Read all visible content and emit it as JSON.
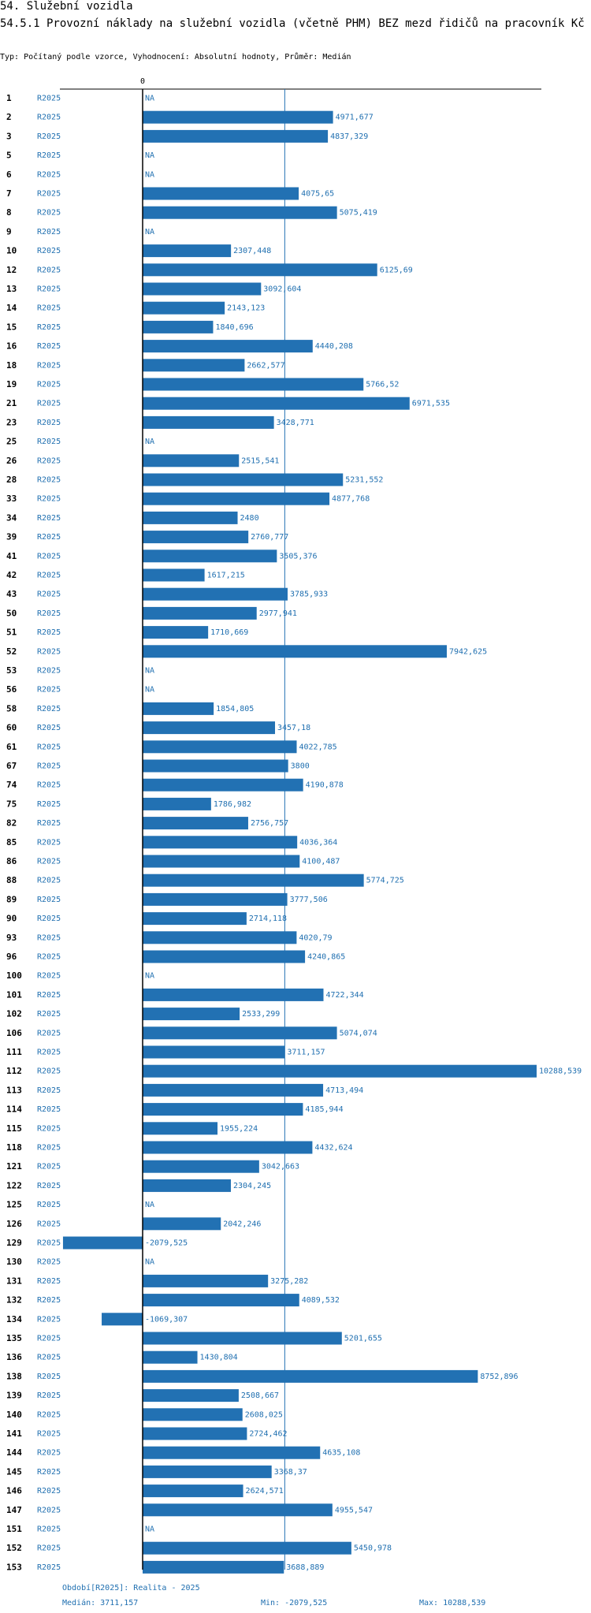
{
  "header": {
    "section": "54. Služební vozidla",
    "title": "54.5.1 Provozní náklady na služební vozidla (včetně PHM) BEZ mezd řidičů na pracovník Kč",
    "subtitle": "Typ: Počítaný podle vzorce, Vyhodnocení: Absolutní hodnoty, Průměr: Medián"
  },
  "colors": {
    "bar": "#2271b3",
    "text_blue": "#1f6fb0",
    "axis": "#000000"
  },
  "chart_data": {
    "type": "bar",
    "orientation": "horizontal",
    "zero_label": "0",
    "na_label": "NA",
    "median": 3711.157,
    "xlim": [
      -2079.525,
      10288.539
    ],
    "rows": [
      {
        "id": "1",
        "period": "R2025",
        "value": null,
        "label": "NA"
      },
      {
        "id": "2",
        "period": "R2025",
        "value": 4971.677,
        "label": "4971,677"
      },
      {
        "id": "3",
        "period": "R2025",
        "value": 4837.329,
        "label": "4837,329"
      },
      {
        "id": "5",
        "period": "R2025",
        "value": null,
        "label": "NA"
      },
      {
        "id": "6",
        "period": "R2025",
        "value": null,
        "label": "NA"
      },
      {
        "id": "7",
        "period": "R2025",
        "value": 4075.65,
        "label": "4075,65"
      },
      {
        "id": "8",
        "period": "R2025",
        "value": 5075.419,
        "label": "5075,419"
      },
      {
        "id": "9",
        "period": "R2025",
        "value": null,
        "label": "NA"
      },
      {
        "id": "10",
        "period": "R2025",
        "value": 2307.448,
        "label": "2307,448"
      },
      {
        "id": "12",
        "period": "R2025",
        "value": 6125.69,
        "label": "6125,69"
      },
      {
        "id": "13",
        "period": "R2025",
        "value": 3092.604,
        "label": "3092,604"
      },
      {
        "id": "14",
        "period": "R2025",
        "value": 2143.123,
        "label": "2143,123"
      },
      {
        "id": "15",
        "period": "R2025",
        "value": 1840.696,
        "label": "1840,696"
      },
      {
        "id": "16",
        "period": "R2025",
        "value": 4440.208,
        "label": "4440,208"
      },
      {
        "id": "18",
        "period": "R2025",
        "value": 2662.577,
        "label": "2662,577"
      },
      {
        "id": "19",
        "period": "R2025",
        "value": 5766.52,
        "label": "5766,52"
      },
      {
        "id": "21",
        "period": "R2025",
        "value": 6971.535,
        "label": "6971,535"
      },
      {
        "id": "23",
        "period": "R2025",
        "value": 3428.771,
        "label": "3428,771"
      },
      {
        "id": "25",
        "period": "R2025",
        "value": null,
        "label": "NA"
      },
      {
        "id": "26",
        "period": "R2025",
        "value": 2515.541,
        "label": "2515,541"
      },
      {
        "id": "28",
        "period": "R2025",
        "value": 5231.552,
        "label": "5231,552"
      },
      {
        "id": "33",
        "period": "R2025",
        "value": 4877.768,
        "label": "4877,768"
      },
      {
        "id": "34",
        "period": "R2025",
        "value": 2480,
        "label": "2480"
      },
      {
        "id": "39",
        "period": "R2025",
        "value": 2760.777,
        "label": "2760,777"
      },
      {
        "id": "41",
        "period": "R2025",
        "value": 3505.376,
        "label": "3505,376"
      },
      {
        "id": "42",
        "period": "R2025",
        "value": 1617.215,
        "label": "1617,215"
      },
      {
        "id": "43",
        "period": "R2025",
        "value": 3785.933,
        "label": "3785,933"
      },
      {
        "id": "50",
        "period": "R2025",
        "value": 2977.941,
        "label": "2977,941"
      },
      {
        "id": "51",
        "period": "R2025",
        "value": 1710.669,
        "label": "1710,669"
      },
      {
        "id": "52",
        "period": "R2025",
        "value": 7942.625,
        "label": "7942,625"
      },
      {
        "id": "53",
        "period": "R2025",
        "value": null,
        "label": "NA"
      },
      {
        "id": "56",
        "period": "R2025",
        "value": null,
        "label": "NA"
      },
      {
        "id": "58",
        "period": "R2025",
        "value": 1854.805,
        "label": "1854,805"
      },
      {
        "id": "60",
        "period": "R2025",
        "value": 3457.18,
        "label": "3457,18"
      },
      {
        "id": "61",
        "period": "R2025",
        "value": 4022.785,
        "label": "4022,785"
      },
      {
        "id": "67",
        "period": "R2025",
        "value": 3800,
        "label": "3800"
      },
      {
        "id": "74",
        "period": "R2025",
        "value": 4190.878,
        "label": "4190,878"
      },
      {
        "id": "75",
        "period": "R2025",
        "value": 1786.982,
        "label": "1786,982"
      },
      {
        "id": "82",
        "period": "R2025",
        "value": 2756.757,
        "label": "2756,757"
      },
      {
        "id": "85",
        "period": "R2025",
        "value": 4036.364,
        "label": "4036,364"
      },
      {
        "id": "86",
        "period": "R2025",
        "value": 4100.487,
        "label": "4100,487"
      },
      {
        "id": "88",
        "period": "R2025",
        "value": 5774.725,
        "label": "5774,725"
      },
      {
        "id": "89",
        "period": "R2025",
        "value": 3777.506,
        "label": "3777,506"
      },
      {
        "id": "90",
        "period": "R2025",
        "value": 2714.118,
        "label": "2714,118"
      },
      {
        "id": "93",
        "period": "R2025",
        "value": 4020.79,
        "label": "4020,79"
      },
      {
        "id": "96",
        "period": "R2025",
        "value": 4240.865,
        "label": "4240,865"
      },
      {
        "id": "100",
        "period": "R2025",
        "value": null,
        "label": "NA"
      },
      {
        "id": "101",
        "period": "R2025",
        "value": 4722.344,
        "label": "4722,344"
      },
      {
        "id": "102",
        "period": "R2025",
        "value": 2533.299,
        "label": "2533,299"
      },
      {
        "id": "106",
        "period": "R2025",
        "value": 5074.074,
        "label": "5074,074"
      },
      {
        "id": "111",
        "period": "R2025",
        "value": 3711.157,
        "label": "3711,157"
      },
      {
        "id": "112",
        "period": "R2025",
        "value": 10288.539,
        "label": "10288,539"
      },
      {
        "id": "113",
        "period": "R2025",
        "value": 4713.494,
        "label": "4713,494"
      },
      {
        "id": "114",
        "period": "R2025",
        "value": 4185.944,
        "label": "4185,944"
      },
      {
        "id": "115",
        "period": "R2025",
        "value": 1955.224,
        "label": "1955,224"
      },
      {
        "id": "118",
        "period": "R2025",
        "value": 4432.624,
        "label": "4432,624"
      },
      {
        "id": "121",
        "period": "R2025",
        "value": 3042.663,
        "label": "3042,663"
      },
      {
        "id": "122",
        "period": "R2025",
        "value": 2304.245,
        "label": "2304,245"
      },
      {
        "id": "125",
        "period": "R2025",
        "value": null,
        "label": "NA"
      },
      {
        "id": "126",
        "period": "R2025",
        "value": 2042.246,
        "label": "2042,246"
      },
      {
        "id": "129",
        "period": "R2025",
        "value": -2079.525,
        "label": "-2079,525"
      },
      {
        "id": "130",
        "period": "R2025",
        "value": null,
        "label": "NA"
      },
      {
        "id": "131",
        "period": "R2025",
        "value": 3275.282,
        "label": "3275,282"
      },
      {
        "id": "132",
        "period": "R2025",
        "value": 4089.532,
        "label": "4089,532"
      },
      {
        "id": "134",
        "period": "R2025",
        "value": -1069.307,
        "label": "-1069,307"
      },
      {
        "id": "135",
        "period": "R2025",
        "value": 5201.655,
        "label": "5201,655"
      },
      {
        "id": "136",
        "period": "R2025",
        "value": 1430.804,
        "label": "1430,804"
      },
      {
        "id": "138",
        "period": "R2025",
        "value": 8752.896,
        "label": "8752,896"
      },
      {
        "id": "139",
        "period": "R2025",
        "value": 2508.667,
        "label": "2508,667"
      },
      {
        "id": "140",
        "period": "R2025",
        "value": 2608.025,
        "label": "2608,025"
      },
      {
        "id": "141",
        "period": "R2025",
        "value": 2724.462,
        "label": "2724,462"
      },
      {
        "id": "144",
        "period": "R2025",
        "value": 4635.108,
        "label": "4635,108"
      },
      {
        "id": "145",
        "period": "R2025",
        "value": 3368.37,
        "label": "3368,37"
      },
      {
        "id": "146",
        "period": "R2025",
        "value": 2624.571,
        "label": "2624,571"
      },
      {
        "id": "147",
        "period": "R2025",
        "value": 4955.547,
        "label": "4955,547"
      },
      {
        "id": "151",
        "period": "R2025",
        "value": null,
        "label": "NA"
      },
      {
        "id": "152",
        "period": "R2025",
        "value": 5450.978,
        "label": "5450,978"
      },
      {
        "id": "153",
        "period": "R2025",
        "value": 3688.889,
        "label": "3688,889"
      }
    ]
  },
  "footer": {
    "period": "Období[R2025]: Realita - 2025",
    "median": "Medián: 3711,157",
    "min": "Min: -2079,525",
    "max": "Max: 10288,539"
  }
}
